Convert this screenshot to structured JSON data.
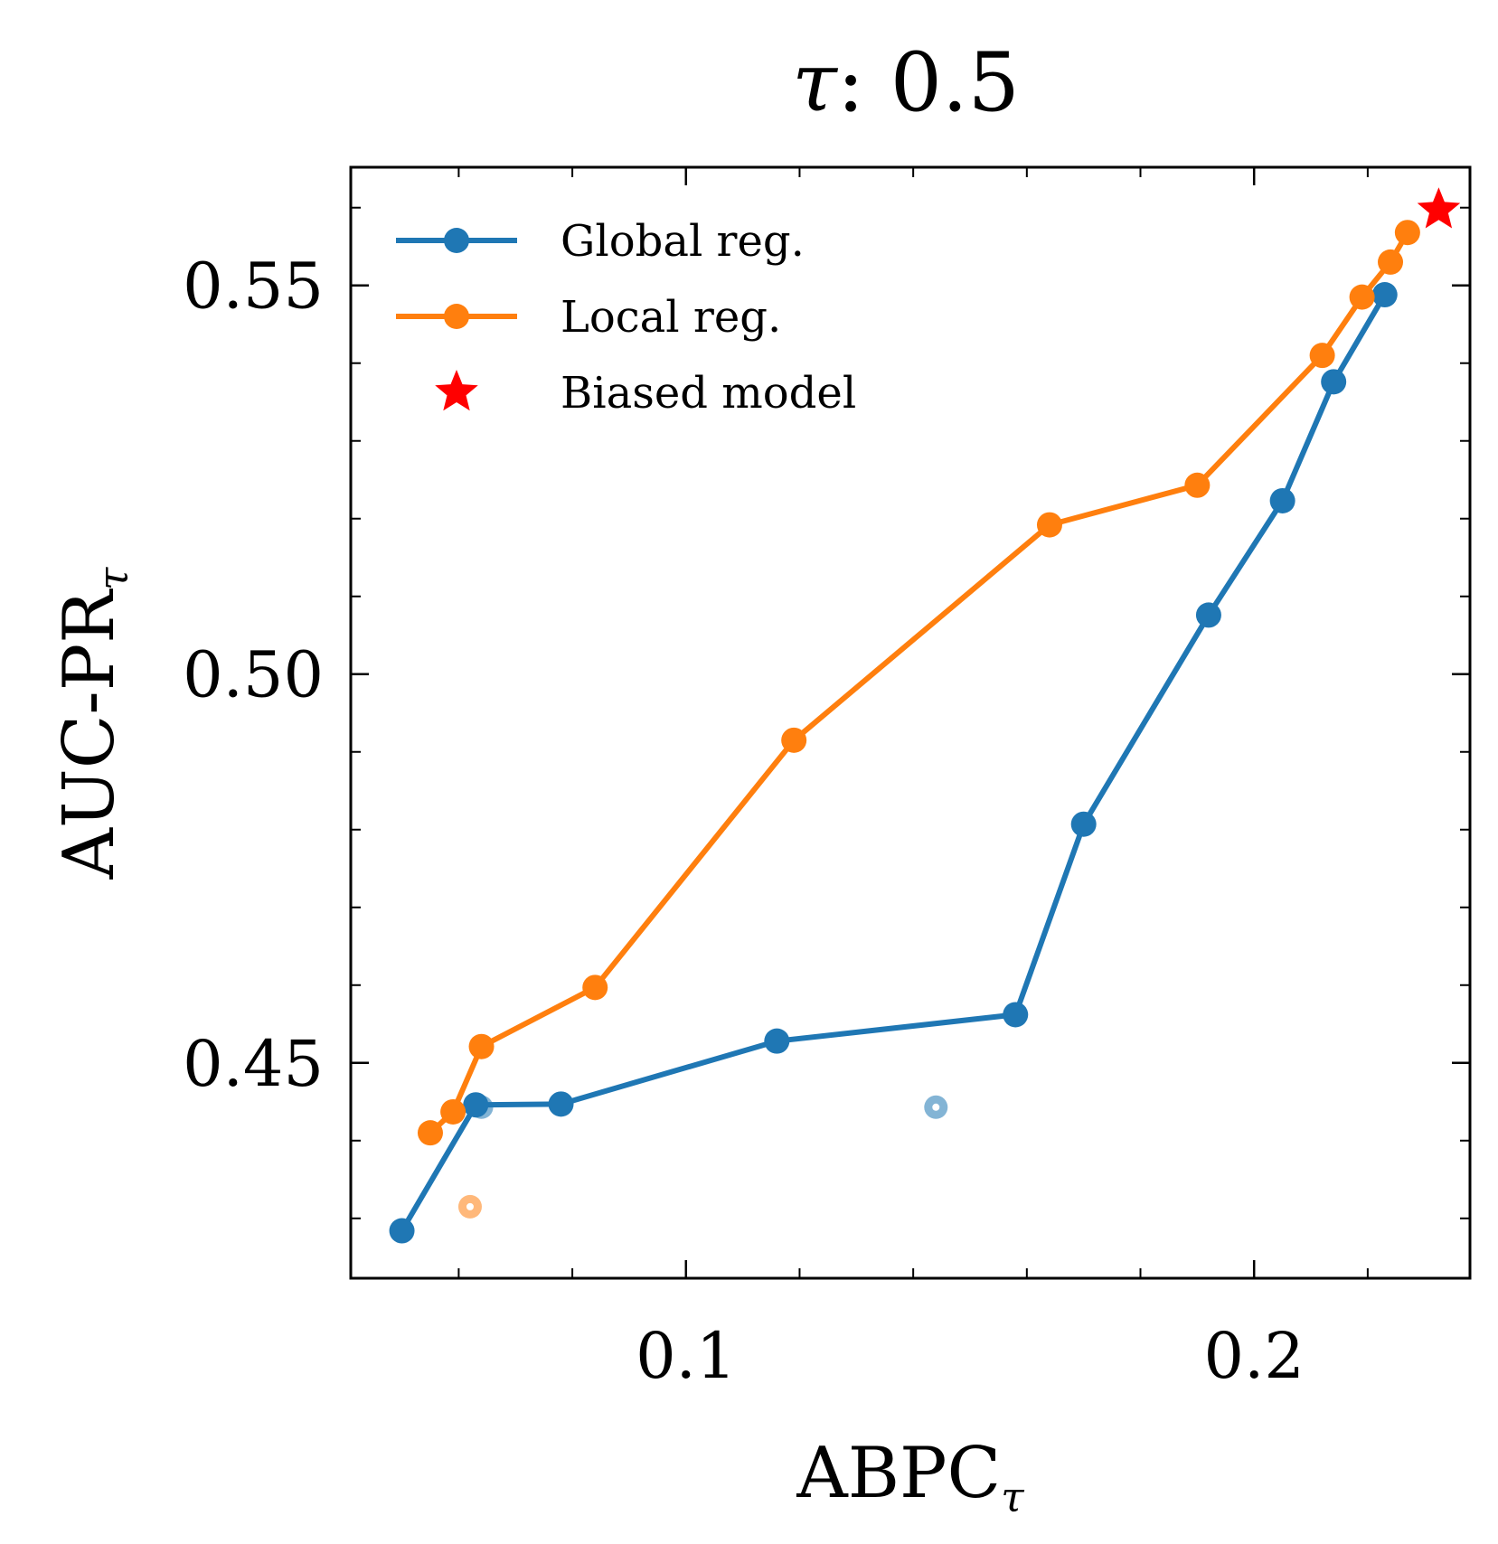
{
  "chart_data": {
    "type": "line",
    "title": {
      "symbol": "τ",
      "text": ": 0.5"
    },
    "xlabel": {
      "main": "ABPC",
      "sub": "τ"
    },
    "ylabel": {
      "main": "AUC-PR",
      "sub": "τ"
    },
    "xlim": [
      0.041,
      0.238
    ],
    "ylim": [
      0.4223,
      0.5652
    ],
    "xticks": [
      {
        "value": 0.1,
        "label": "0.1"
      },
      {
        "value": 0.2,
        "label": "0.2"
      }
    ],
    "yticks": [
      {
        "value": 0.45,
        "label": "0.45"
      },
      {
        "value": 0.5,
        "label": "0.50"
      },
      {
        "value": 0.55,
        "label": "0.55"
      }
    ],
    "x_minor_ticks": [
      0.06,
      0.08,
      0.12,
      0.14,
      0.16,
      0.18,
      0.22
    ],
    "y_minor_ticks": [
      0.43,
      0.44,
      0.46,
      0.47,
      0.48,
      0.49,
      0.51,
      0.52,
      0.53,
      0.54,
      0.56
    ],
    "series": [
      {
        "name": "Global reg.",
        "color": "#1f77b4",
        "x": [
          0.05,
          0.063,
          0.078,
          0.116,
          0.158,
          0.17,
          0.192,
          0.205,
          0.214,
          0.223
        ],
        "y": [
          0.4284,
          0.4446,
          0.4447,
          0.4528,
          0.4562,
          0.4807,
          0.5076,
          0.5223,
          0.5376,
          0.5488
        ]
      },
      {
        "name": "Local reg.",
        "color": "#ff7f0e",
        "x": [
          0.055,
          0.059,
          0.064,
          0.084,
          0.119,
          0.164,
          0.19,
          0.212,
          0.219,
          0.224,
          0.227
        ],
        "y": [
          0.441,
          0.4437,
          0.4521,
          0.4597,
          0.4915,
          0.5192,
          0.5243,
          0.541,
          0.5485,
          0.553,
          0.5568
        ]
      }
    ],
    "faded_points": [
      {
        "series": "Global reg.",
        "color": "#1f77b4",
        "x": 0.064,
        "y": 0.4443
      },
      {
        "series": "Global reg.",
        "color": "#1f77b4",
        "x": 0.144,
        "y": 0.4443
      },
      {
        "series": "Local reg.",
        "color": "#ff7f0e",
        "x": 0.062,
        "y": 0.4315
      }
    ],
    "reference_point": {
      "name": "Biased model",
      "color": "#ff0000",
      "marker": "star",
      "x": 0.2325,
      "y": 0.5597
    },
    "legend": {
      "position": "top-left",
      "entries": [
        {
          "label": "Global reg.",
          "color": "#1f77b4",
          "marker": "line-dot"
        },
        {
          "label": "Local reg.",
          "color": "#ff7f0e",
          "marker": "line-dot"
        },
        {
          "label": "Biased model",
          "color": "#ff0000",
          "marker": "star"
        }
      ]
    },
    "grid": false
  }
}
